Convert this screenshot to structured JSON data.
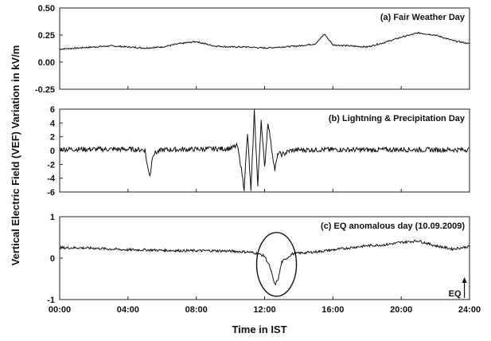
{
  "figure": {
    "ylabel": "Vertical Electric Field (VEF) Variation in kV/m",
    "xlabel": "Time in IST",
    "x_ticks": [
      "00:00",
      "04:00",
      "08:00",
      "12:00",
      "16:00",
      "20:00",
      "24:00"
    ],
    "eq_marker_label": "EQ"
  },
  "chart_data": [
    {
      "type": "line",
      "title": "(a) Fair Weather Day",
      "xlabel": "Time in IST",
      "ylabel": "Vertical Electric Field (VEF) Variation in kV/m",
      "xlim": [
        0,
        24
      ],
      "ylim": [
        -0.25,
        0.5
      ],
      "yticks": [
        "0.50",
        "0.25",
        "0.00",
        "-0.25"
      ],
      "ytick_values": [
        0.5,
        0.25,
        0.0,
        -0.25
      ],
      "grid": false,
      "series": [
        {
          "x": [
            0,
            1,
            2,
            3,
            4,
            5,
            6,
            7,
            8,
            9,
            10,
            11,
            12,
            13,
            14,
            15,
            15.5,
            16,
            17,
            18,
            19,
            20,
            21,
            22,
            23,
            24
          ],
          "values": [
            0.12,
            0.13,
            0.14,
            0.15,
            0.14,
            0.13,
            0.14,
            0.17,
            0.19,
            0.15,
            0.14,
            0.14,
            0.13,
            0.14,
            0.15,
            0.17,
            0.26,
            0.16,
            0.15,
            0.14,
            0.18,
            0.23,
            0.27,
            0.25,
            0.2,
            0.17
          ]
        }
      ]
    },
    {
      "type": "line",
      "title": "(b) Lightning & Precipitation Day",
      "xlim": [
        0,
        24
      ],
      "ylim": [
        -6,
        6
      ],
      "yticks": [
        "6",
        "4",
        "2",
        "0",
        "-2",
        "-4",
        "-6"
      ],
      "ytick_values": [
        6,
        4,
        2,
        0,
        -2,
        -4,
        -6
      ],
      "grid": false,
      "series": [
        {
          "x": [
            0,
            2,
            4,
            5,
            5.15,
            5.3,
            5.45,
            6,
            8,
            10,
            10.4,
            10.6,
            10.8,
            11.0,
            11.2,
            11.4,
            11.6,
            11.8,
            12.0,
            12.2,
            12.4,
            12.6,
            12.8,
            13.0,
            13.5,
            14,
            16,
            18,
            20,
            22,
            24
          ],
          "values": [
            0.2,
            0.2,
            0.2,
            0.1,
            -2.5,
            -3.6,
            -0.5,
            0.1,
            0.2,
            0.3,
            0.7,
            -2.0,
            -5.5,
            2.5,
            -6.0,
            5.8,
            -5.2,
            4.5,
            -2.5,
            4.2,
            0.5,
            -2.8,
            -0.3,
            -0.6,
            0.0,
            0.1,
            0.15,
            0.1,
            0.15,
            0.1,
            0.15
          ]
        }
      ]
    },
    {
      "type": "line",
      "title": "(c) EQ anomalous day (10.09.2009)",
      "xlim": [
        0,
        24
      ],
      "ylim": [
        -1,
        1
      ],
      "yticks": [
        "1",
        "0",
        "-1"
      ],
      "ytick_values": [
        1,
        0,
        -1
      ],
      "grid": false,
      "annotations": [
        "EQ"
      ],
      "series": [
        {
          "x": [
            0,
            1,
            2,
            3,
            4,
            5,
            6,
            7,
            8,
            9,
            10,
            11,
            11.5,
            12,
            12.3,
            12.6,
            12.8,
            13.0,
            13.3,
            13.6,
            14,
            15,
            16,
            17,
            18,
            19,
            20,
            21,
            22,
            23,
            24
          ],
          "values": [
            0.25,
            0.25,
            0.24,
            0.22,
            0.2,
            0.2,
            0.19,
            0.18,
            0.18,
            0.18,
            0.17,
            0.15,
            0.12,
            0.05,
            -0.2,
            -0.65,
            -0.5,
            -0.1,
            0.0,
            0.1,
            0.12,
            0.15,
            0.2,
            0.25,
            0.3,
            0.32,
            0.38,
            0.42,
            0.3,
            0.22,
            0.28
          ]
        }
      ]
    }
  ]
}
